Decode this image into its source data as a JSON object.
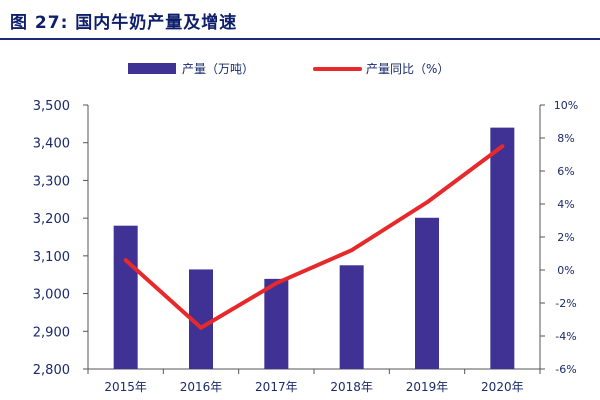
{
  "figure": {
    "title": "图 27: 国内牛奶产量及增速"
  },
  "colors": {
    "bar": "#3f3294",
    "line": "#e8292b",
    "axis": "#555555",
    "tick_text": "#1a2a6c",
    "title": "#0d1f6b"
  },
  "chart_data": {
    "type": "bar",
    "title": "国内牛奶产量及增速",
    "categories": [
      "2015年",
      "2016年",
      "2017年",
      "2018年",
      "2019年",
      "2020年"
    ],
    "series": [
      {
        "name": "产量（万吨）",
        "type": "bar",
        "axis": "left",
        "values": [
          3180,
          3064,
          3039,
          3075,
          3201,
          3440
        ]
      },
      {
        "name": "产量同比（%）",
        "type": "line",
        "axis": "right",
        "values": [
          0.6,
          -3.5,
          -0.8,
          1.2,
          4.1,
          7.5
        ]
      }
    ],
    "ylim_left": [
      2800,
      3500
    ],
    "ylim_right": [
      -6,
      10
    ],
    "yticks_left": [
      "2,800",
      "2,900",
      "3,000",
      "3,100",
      "3,200",
      "3,300",
      "3,400",
      "3,500"
    ],
    "yticks_right": [
      "-6%",
      "-4%",
      "-2%",
      "0%",
      "2%",
      "4%",
      "6%",
      "8%",
      "10%"
    ],
    "legend_position": "top-center",
    "grid": false
  }
}
